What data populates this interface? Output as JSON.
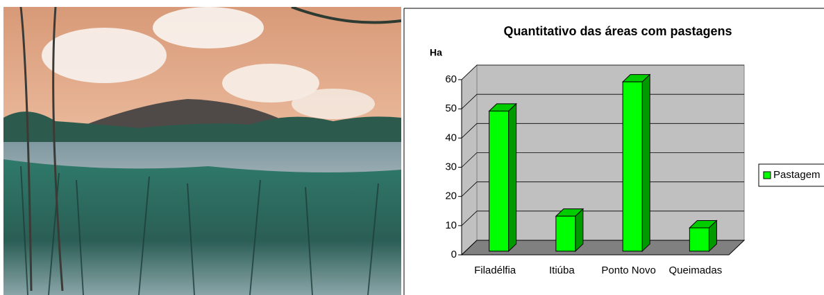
{
  "chart_data": {
    "type": "bar3d",
    "title": "Quantitativo das áreas com pastagens",
    "y_label": "Ha",
    "categories": [
      "Filadélfia",
      "Itiúba",
      "Ponto Novo",
      "Queimadas"
    ],
    "series": [
      {
        "name": "Pastagem",
        "color": "#00ff00",
        "values": [
          48,
          12,
          58,
          8
        ]
      }
    ],
    "ylim": [
      0,
      60
    ],
    "yticks": [
      0,
      10,
      20,
      30,
      40,
      50,
      60
    ],
    "grid": true,
    "legend": "right"
  }
}
